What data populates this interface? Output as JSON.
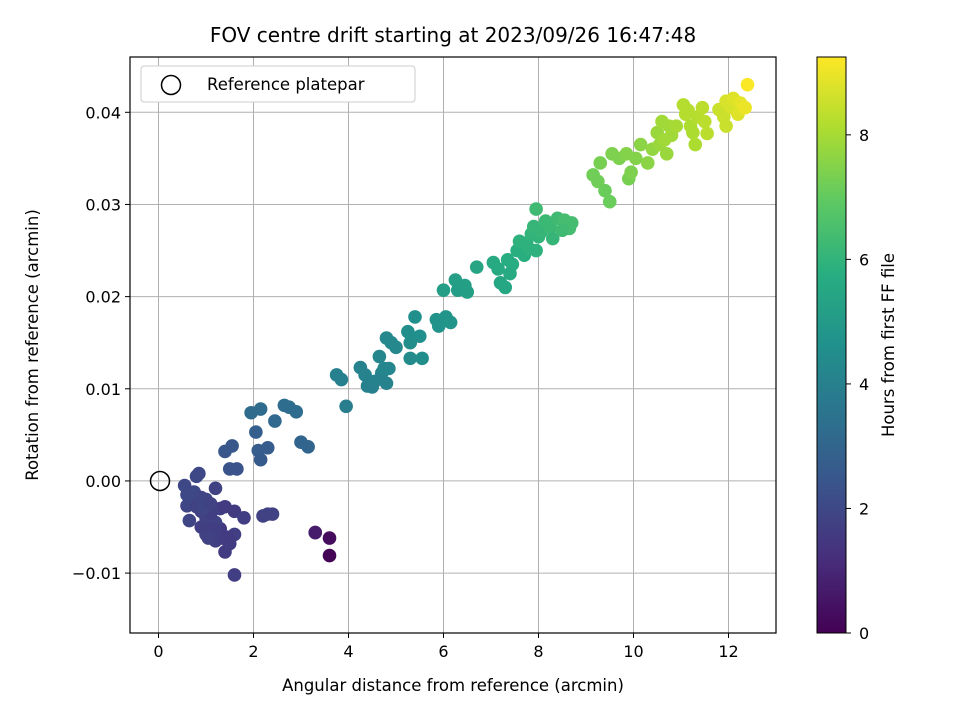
{
  "chart_data": {
    "type": "scatter",
    "title": "FOV centre drift starting at 2023/09/26 16:47:48",
    "xlabel": "Angular distance from reference (arcmin)",
    "ylabel": "Rotation from reference (arcmin)",
    "xlim": [
      -0.6,
      13.0
    ],
    "ylim": [
      -0.0165,
      0.046
    ],
    "xticks": [
      0,
      2,
      4,
      6,
      8,
      10,
      12
    ],
    "xtick_labels": [
      "0",
      "2",
      "4",
      "6",
      "8",
      "10",
      "12"
    ],
    "yticks": [
      -0.01,
      0.0,
      0.01,
      0.02,
      0.03,
      0.04
    ],
    "ytick_labels": [
      "−0.01",
      "0.00",
      "0.01",
      "0.02",
      "0.03",
      "0.04"
    ],
    "grid": true,
    "legend": {
      "placement": "top-left",
      "entries": [
        "Reference platepar"
      ]
    },
    "reference_point": {
      "x": 0,
      "y": 0,
      "label": "Reference platepar"
    },
    "colorbar": {
      "label": "Hours from first FF file",
      "range": [
        0,
        9.25
      ],
      "ticks": [
        0,
        2,
        4,
        6,
        8
      ],
      "tick_labels": [
        "0",
        "2",
        "4",
        "6",
        "8"
      ],
      "colormap": "viridis"
    },
    "points": [
      [
        3.6,
        -0.0081,
        0.1
      ],
      [
        3.6,
        -0.0062,
        0.3
      ],
      [
        3.3,
        -0.0056,
        0.6
      ],
      [
        3.3,
        -0.0056,
        0.7
      ],
      [
        1.6,
        -0.0102,
        1.7
      ],
      [
        1.4,
        -0.0077,
        1.6
      ],
      [
        1.5,
        -0.0068,
        1.6
      ],
      [
        1.6,
        -0.0058,
        1.7
      ],
      [
        1.2,
        -0.0065,
        1.7
      ],
      [
        1.0,
        -0.0058,
        1.8
      ],
      [
        0.9,
        -0.005,
        1.7
      ],
      [
        1.1,
        -0.0048,
        1.7
      ],
      [
        1.3,
        -0.0052,
        1.6
      ],
      [
        1.4,
        -0.0063,
        1.7
      ],
      [
        1.2,
        -0.0045,
        1.8
      ],
      [
        0.65,
        -0.0043,
        1.9
      ],
      [
        0.6,
        -0.0027,
        1.9
      ],
      [
        0.7,
        -0.0022,
        1.9
      ],
      [
        0.8,
        -0.0028,
        1.8
      ],
      [
        0.9,
        -0.0033,
        1.8
      ],
      [
        1.0,
        -0.004,
        1.8
      ],
      [
        1.1,
        -0.0035,
        1.7
      ],
      [
        1.3,
        -0.003,
        1.7
      ],
      [
        1.4,
        -0.0028,
        1.6
      ],
      [
        1.6,
        -0.0033,
        1.6
      ],
      [
        1.8,
        -0.004,
        1.7
      ],
      [
        0.6,
        -0.0015,
        2.0
      ],
      [
        0.55,
        -0.0005,
        2.0
      ],
      [
        0.75,
        -0.0012,
        2.0
      ],
      [
        0.9,
        -0.0018,
        1.9
      ],
      [
        1.2,
        -0.0008,
        1.8
      ],
      [
        1.0,
        -0.002,
        1.9
      ],
      [
        0.8,
        0.0005,
        2.0
      ],
      [
        0.85,
        0.0008,
        2.0
      ],
      [
        1.15,
        -0.0052,
        1.7
      ],
      [
        1.25,
        -0.0057,
        1.7
      ],
      [
        1.45,
        -0.0061,
        1.6
      ],
      [
        1.05,
        -0.0062,
        1.8
      ],
      [
        0.95,
        -0.003,
        1.9
      ],
      [
        1.1,
        -0.0025,
        1.8
      ],
      [
        2.2,
        -0.0038,
        1.8
      ],
      [
        2.3,
        -0.0036,
        1.8
      ],
      [
        2.4,
        -0.0036,
        1.8
      ],
      [
        1.4,
        0.0032,
        2.5
      ],
      [
        1.55,
        0.0038,
        2.5
      ],
      [
        1.5,
        0.0013,
        2.4
      ],
      [
        1.65,
        0.0013,
        2.4
      ],
      [
        2.05,
        0.0053,
        2.8
      ],
      [
        2.1,
        0.0033,
        2.7
      ],
      [
        2.15,
        0.0023,
        2.6
      ],
      [
        2.3,
        0.0036,
        2.7
      ],
      [
        1.95,
        0.0074,
        3.2
      ],
      [
        2.15,
        0.0078,
        3.2
      ],
      [
        2.45,
        0.0065,
        3.1
      ],
      [
        2.65,
        0.0082,
        3.3
      ],
      [
        2.75,
        0.008,
        3.3
      ],
      [
        2.9,
        0.0075,
        3.3
      ],
      [
        3.0,
        0.0042,
        3.0
      ],
      [
        3.15,
        0.0037,
        3.0
      ],
      [
        3.75,
        0.0115,
        4.0
      ],
      [
        3.85,
        0.011,
        4.0
      ],
      [
        3.95,
        0.0081,
        3.9
      ],
      [
        4.25,
        0.0123,
        4.1
      ],
      [
        4.35,
        0.0115,
        4.1
      ],
      [
        4.4,
        0.0103,
        4.0
      ],
      [
        4.5,
        0.0102,
        4.0
      ],
      [
        4.55,
        0.0108,
        4.1
      ],
      [
        4.65,
        0.0135,
        4.2
      ],
      [
        4.7,
        0.0117,
        4.1
      ],
      [
        4.75,
        0.0122,
        4.2
      ],
      [
        4.8,
        0.0106,
        4.1
      ],
      [
        4.85,
        0.0122,
        4.2
      ],
      [
        4.8,
        0.0155,
        4.3
      ],
      [
        4.9,
        0.015,
        4.3
      ],
      [
        5.0,
        0.0145,
        4.3
      ],
      [
        5.25,
        0.0162,
        4.5
      ],
      [
        5.3,
        0.015,
        4.5
      ],
      [
        5.3,
        0.0133,
        4.4
      ],
      [
        5.5,
        0.0157,
        4.6
      ],
      [
        5.55,
        0.0133,
        4.5
      ],
      [
        5.4,
        0.0178,
        4.6
      ],
      [
        5.85,
        0.0175,
        4.7
      ],
      [
        5.9,
        0.0168,
        4.7
      ],
      [
        6.05,
        0.0178,
        4.8
      ],
      [
        6.15,
        0.0172,
        4.8
      ],
      [
        6.0,
        0.0207,
        5.1
      ],
      [
        6.25,
        0.0218,
        5.2
      ],
      [
        6.3,
        0.0207,
        5.1
      ],
      [
        6.45,
        0.0212,
        5.2
      ],
      [
        6.5,
        0.0205,
        5.2
      ],
      [
        6.7,
        0.0232,
        5.4
      ],
      [
        7.05,
        0.0237,
        5.6
      ],
      [
        7.15,
        0.023,
        5.6
      ],
      [
        7.2,
        0.0215,
        5.5
      ],
      [
        7.3,
        0.021,
        5.5
      ],
      [
        7.35,
        0.024,
        5.7
      ],
      [
        7.45,
        0.0235,
        5.7
      ],
      [
        7.4,
        0.0225,
        5.6
      ],
      [
        7.55,
        0.025,
        5.8
      ],
      [
        7.6,
        0.026,
        5.9
      ],
      [
        7.7,
        0.0245,
        5.8
      ],
      [
        7.8,
        0.0252,
        5.9
      ],
      [
        7.75,
        0.0258,
        5.9
      ],
      [
        7.85,
        0.0268,
        6.0
      ],
      [
        7.9,
        0.0276,
        6.1
      ],
      [
        7.95,
        0.025,
        5.9
      ],
      [
        8.0,
        0.0265,
        6.0
      ],
      [
        8.05,
        0.027,
        6.1
      ],
      [
        8.15,
        0.0282,
        6.2
      ],
      [
        8.25,
        0.0275,
        6.2
      ],
      [
        8.3,
        0.0263,
        6.1
      ],
      [
        7.95,
        0.0295,
        6.3
      ],
      [
        8.4,
        0.0285,
        6.3
      ],
      [
        8.55,
        0.0283,
        6.4
      ],
      [
        8.6,
        0.0278,
        6.4
      ],
      [
        8.65,
        0.0274,
        6.4
      ],
      [
        8.7,
        0.028,
        6.4
      ],
      [
        8.5,
        0.0272,
        6.3
      ],
      [
        9.15,
        0.0332,
        7.2
      ],
      [
        9.25,
        0.0325,
        7.2
      ],
      [
        9.3,
        0.0345,
        7.3
      ],
      [
        9.4,
        0.0315,
        7.1
      ],
      [
        9.5,
        0.0303,
        7.1
      ],
      [
        9.55,
        0.0355,
        7.4
      ],
      [
        9.7,
        0.035,
        7.4
      ],
      [
        9.85,
        0.0355,
        7.5
      ],
      [
        9.9,
        0.0328,
        7.3
      ],
      [
        9.95,
        0.0335,
        7.4
      ],
      [
        10.05,
        0.035,
        7.5
      ],
      [
        10.15,
        0.0365,
        7.6
      ],
      [
        10.3,
        0.0345,
        7.6
      ],
      [
        10.4,
        0.036,
        7.7
      ],
      [
        10.5,
        0.0378,
        7.8
      ],
      [
        10.55,
        0.0365,
        7.8
      ],
      [
        10.6,
        0.039,
        7.9
      ],
      [
        10.65,
        0.037,
        7.9
      ],
      [
        10.7,
        0.0355,
        7.8
      ],
      [
        10.75,
        0.0385,
        7.9
      ],
      [
        10.8,
        0.0375,
        7.9
      ],
      [
        10.9,
        0.0385,
        8.0
      ],
      [
        11.05,
        0.0408,
        8.2
      ],
      [
        11.1,
        0.0398,
        8.2
      ],
      [
        11.15,
        0.0402,
        8.2
      ],
      [
        11.2,
        0.0385,
        8.1
      ],
      [
        11.25,
        0.0378,
        8.1
      ],
      [
        11.3,
        0.0365,
        8.1
      ],
      [
        11.35,
        0.0395,
        8.2
      ],
      [
        11.45,
        0.0405,
        8.3
      ],
      [
        11.5,
        0.039,
        8.3
      ],
      [
        11.55,
        0.0377,
        8.3
      ],
      [
        11.8,
        0.0403,
        8.5
      ],
      [
        11.9,
        0.0395,
        8.5
      ],
      [
        11.95,
        0.0385,
        8.5
      ],
      [
        11.95,
        0.0412,
        8.7
      ],
      [
        12.05,
        0.0405,
        8.7
      ],
      [
        12.1,
        0.0415,
        8.8
      ],
      [
        12.2,
        0.0398,
        8.8
      ],
      [
        12.25,
        0.041,
        8.9
      ],
      [
        12.35,
        0.0405,
        9.0
      ],
      [
        12.4,
        0.043,
        9.2
      ]
    ]
  }
}
